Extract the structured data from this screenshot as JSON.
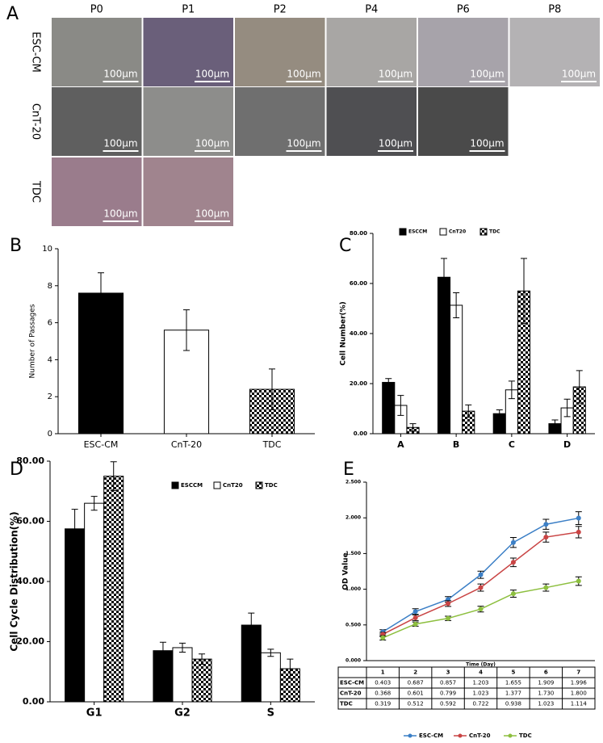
{
  "micrographs": {
    "panel_label": "A",
    "columns": [
      "P0",
      "P1",
      "P2",
      "P4",
      "P6",
      "P8"
    ],
    "rows": [
      {
        "label": "ESC-CM",
        "scale_bars": [
          "100μm",
          "100μm",
          "100μm",
          "100μm",
          "100μm",
          "100μm"
        ]
      },
      {
        "label": "CnT-20",
        "scale_bars": [
          "100μm",
          "100μm",
          "100μm",
          "100μm",
          "100μm"
        ]
      },
      {
        "label": "TDC",
        "scale_bars": [
          "100μm",
          "100μm"
        ]
      }
    ]
  },
  "chart_data": [
    {
      "type": "bar",
      "panel_label": "B",
      "y_label": "Number of Passages",
      "categories": [
        "ESC-CM",
        "CnT-20",
        "TDC"
      ],
      "values": [
        7.6,
        5.6,
        2.4
      ],
      "errors": [
        1.1,
        1.1,
        1.1
      ],
      "colors": [
        "#000000",
        "#ffffff",
        "checkerboard"
      ],
      "ylim": [
        0,
        10
      ],
      "yticks": [
        0,
        2,
        4,
        6,
        8,
        10
      ]
    },
    {
      "type": "grouped_bar",
      "panel_label": "C",
      "y_label": "Cell Number(%)",
      "categories": [
        "A",
        "B",
        "C",
        "D"
      ],
      "series": [
        {
          "name": "ESCCM",
          "color": "#000000",
          "values": [
            20.5,
            62.5,
            8,
            4
          ],
          "errors": [
            1.5,
            7.5,
            1.5,
            1.5
          ]
        },
        {
          "name": "CnT20",
          "color": "#ffffff",
          "values": [
            11.3,
            51.3,
            17.5,
            10.3
          ],
          "errors": [
            4,
            5,
            3.5,
            3.5
          ]
        },
        {
          "name": "TDC",
          "color": "checkerboard",
          "values": [
            2.5,
            9,
            57,
            18.7
          ],
          "errors": [
            1.5,
            2.5,
            13,
            6.5
          ]
        }
      ],
      "ylim": [
        0,
        80
      ],
      "yticks": [
        {
          "value": 0,
          "label": "0.00"
        },
        {
          "value": 20,
          "label": "20.00"
        },
        {
          "value": 40,
          "label": "40.00"
        },
        {
          "value": 60,
          "label": "60.00"
        },
        {
          "value": 80,
          "label": "80.00"
        }
      ]
    },
    {
      "type": "grouped_bar",
      "panel_label": "D",
      "y_label": "Cell Cycle Distribution(%)",
      "categories": [
        "G1",
        "G2",
        "S"
      ],
      "series": [
        {
          "name": "ESCCM",
          "color": "#000000",
          "values": [
            57.5,
            17,
            25.5
          ],
          "errors": [
            6.5,
            2.8,
            4
          ]
        },
        {
          "name": "CnT20",
          "color": "#ffffff",
          "values": [
            66,
            18,
            16.3
          ],
          "errors": [
            2.3,
            1.5,
            1.2
          ]
        },
        {
          "name": "TDC",
          "color": "checkerboard",
          "values": [
            75,
            14.2,
            11
          ],
          "errors": [
            4.8,
            1.7,
            3.2
          ]
        }
      ],
      "ylim": [
        0,
        80
      ],
      "yticks": [
        {
          "value": 0,
          "label": "0.00"
        },
        {
          "value": 20,
          "label": "20.00"
        },
        {
          "value": 40,
          "label": "40.00"
        },
        {
          "value": 60,
          "label": "60.00"
        },
        {
          "value": 80,
          "label": "80.00"
        }
      ]
    },
    {
      "type": "line",
      "panel_label": "E",
      "y_label": "OD Value",
      "x_label": "Time (Day)",
      "x": [
        1,
        2,
        3,
        4,
        5,
        6,
        7
      ],
      "xlim": [
        0.5,
        7.5
      ],
      "series": [
        {
          "name": "ESC-CM",
          "color": "#3b7fc6",
          "values": [
            0.403,
            0.687,
            0.857,
            1.203,
            1.655,
            1.909,
            1.996
          ],
          "value_labels": [
            "0.403",
            "0.687",
            "0.857",
            "1.203",
            "1.655",
            "1.909",
            "1.996"
          ],
          "errors": [
            0.03,
            0.04,
            0.04,
            0.05,
            0.07,
            0.07,
            0.09
          ]
        },
        {
          "name": "CnT-20",
          "color": "#c94444",
          "values": [
            0.368,
            0.601,
            0.799,
            1.023,
            1.377,
            1.73,
            1.8
          ],
          "value_labels": [
            "0.368",
            "0.601",
            "0.799",
            "1.023",
            "1.377",
            "1.730",
            "1.800"
          ],
          "errors": [
            0.03,
            0.04,
            0.04,
            0.05,
            0.06,
            0.07,
            0.08
          ]
        },
        {
          "name": "TDC",
          "color": "#8dbf3f",
          "values": [
            0.319,
            0.512,
            0.592,
            0.722,
            0.938,
            1.023,
            1.114
          ],
          "value_labels": [
            "0.319",
            "0.512",
            "0.592",
            "0.722",
            "0.938",
            "1.023",
            "1.114"
          ],
          "errors": [
            0.03,
            0.03,
            0.03,
            0.04,
            0.05,
            0.05,
            0.06
          ]
        }
      ],
      "ylim": [
        0,
        2.5
      ],
      "yticks": [
        {
          "value": 0,
          "label": "0.000"
        },
        {
          "value": 0.5,
          "label": "0.500"
        },
        {
          "value": 1,
          "label": "1.000"
        },
        {
          "value": 1.5,
          "label": "1.500"
        },
        {
          "value": 2,
          "label": "2.000"
        },
        {
          "value": 2.5,
          "label": "2.500"
        }
      ]
    }
  ]
}
